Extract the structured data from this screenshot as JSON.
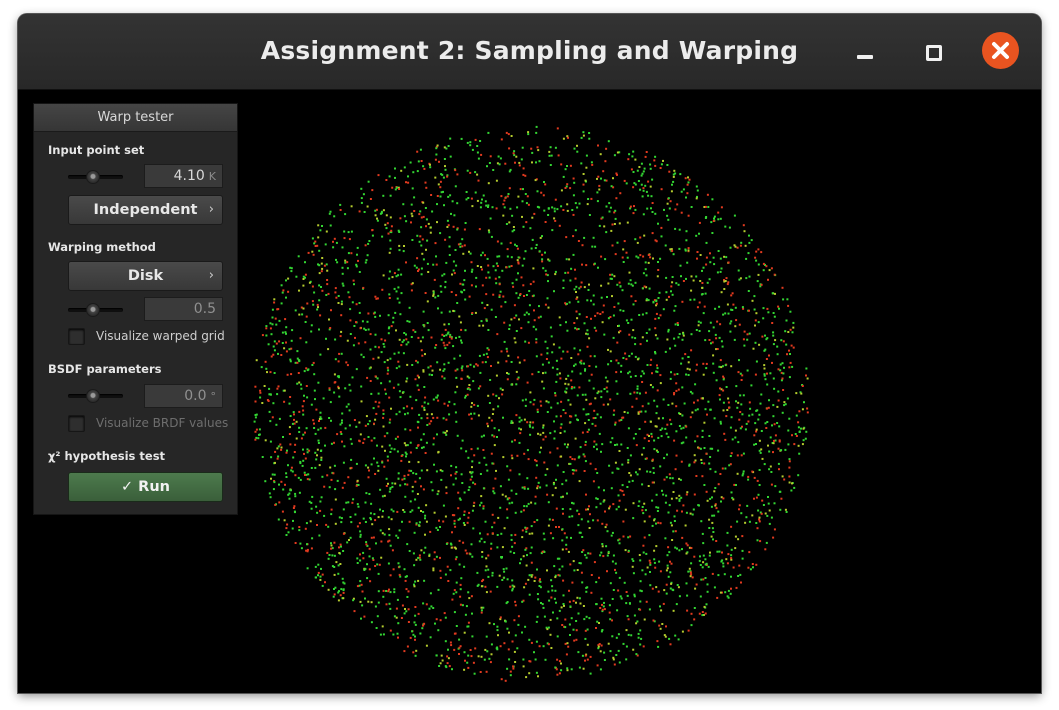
{
  "window": {
    "title": "Assignment 2: Sampling and Warping",
    "controls": [
      "minimize-icon",
      "maximize-icon",
      "close-icon"
    ],
    "close_color": "#e95420"
  },
  "panel": {
    "title": "Warp tester",
    "input_point_set": {
      "label": "Input point set",
      "count_value": "4.10",
      "count_unit": "K",
      "generator": "Independent"
    },
    "warping_method": {
      "label": "Warping method",
      "method": "Disk",
      "parameter_value": "0.5",
      "visualize_grid_label": "Visualize warped grid",
      "visualize_grid_checked": false
    },
    "bsdf": {
      "label": "BSDF parameters",
      "value": "0.0",
      "unit": "°",
      "visualize_brdf_label": "Visualize BRDF values",
      "visualize_brdf_checked": false,
      "enabled": false
    },
    "chi2": {
      "label": "χ² hypothesis test",
      "run_label": "✓ Run",
      "run_color": "#4a734a"
    }
  },
  "visualization": {
    "background": "#000000",
    "point_colors": [
      "#33d633",
      "#e23a1f",
      "#b5cc2e"
    ],
    "shape": "disk"
  }
}
